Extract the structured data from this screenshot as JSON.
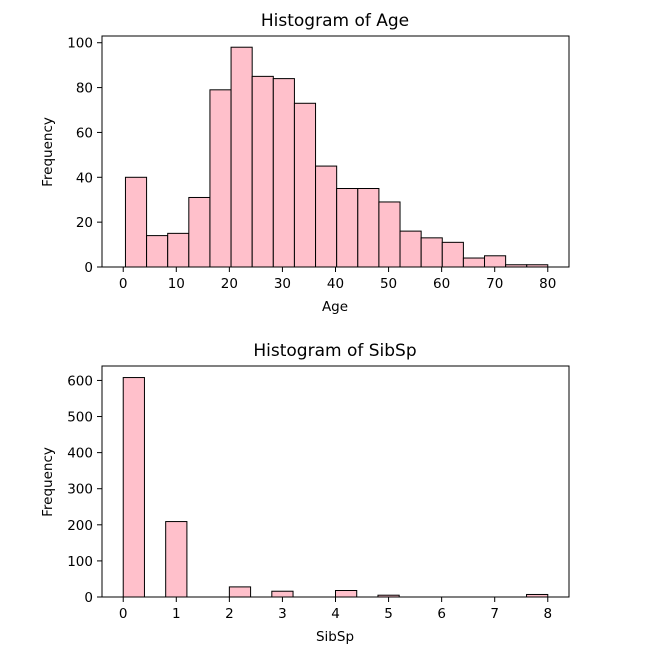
{
  "chart_data": [
    {
      "type": "bar",
      "title": "Histogram of Age",
      "xlabel": "Age",
      "ylabel": "Frequency",
      "bar_color": "#ffc0cb",
      "edge_color": "#000000",
      "xlim": [
        -4,
        84
      ],
      "ylim": [
        0,
        103
      ],
      "xticks": [
        0,
        10,
        20,
        30,
        40,
        50,
        60,
        70,
        80
      ],
      "yticks": [
        0,
        20,
        40,
        60,
        80,
        100
      ],
      "bin_edges": [
        0.42,
        4.4,
        8.38,
        12.36,
        16.34,
        20.32,
        24.3,
        28.28,
        32.26,
        36.24,
        40.22,
        44.2,
        48.18,
        52.16,
        56.14,
        60.12,
        64.1,
        68.08,
        72.06,
        76.04,
        80.0
      ],
      "values": [
        40,
        14,
        15,
        31,
        79,
        98,
        85,
        84,
        73,
        45,
        35,
        35,
        29,
        16,
        13,
        11,
        4,
        5,
        1,
        1
      ]
    },
    {
      "type": "bar",
      "title": "Histogram of SibSp",
      "xlabel": "SibSp",
      "ylabel": "Frequency",
      "bar_color": "#ffc0cb",
      "edge_color": "#000000",
      "xlim": [
        -0.4,
        8.4
      ],
      "ylim": [
        0,
        640
      ],
      "xticks": [
        0,
        1,
        2,
        3,
        4,
        5,
        6,
        7,
        8
      ],
      "yticks": [
        0,
        100,
        200,
        300,
        400,
        500,
        600
      ],
      "bin_edges": [
        0,
        0.4,
        0.8,
        1.2,
        1.6,
        2.0,
        2.4,
        2.8,
        3.2,
        3.6,
        4.0,
        4.4,
        4.8,
        5.2,
        5.6,
        6.0,
        6.4,
        6.8,
        7.2,
        7.6,
        8.0
      ],
      "values": [
        608,
        0,
        209,
        0,
        0,
        28,
        0,
        16,
        0,
        0,
        18,
        0,
        5,
        0,
        0,
        0,
        0,
        0,
        0,
        7
      ]
    }
  ]
}
